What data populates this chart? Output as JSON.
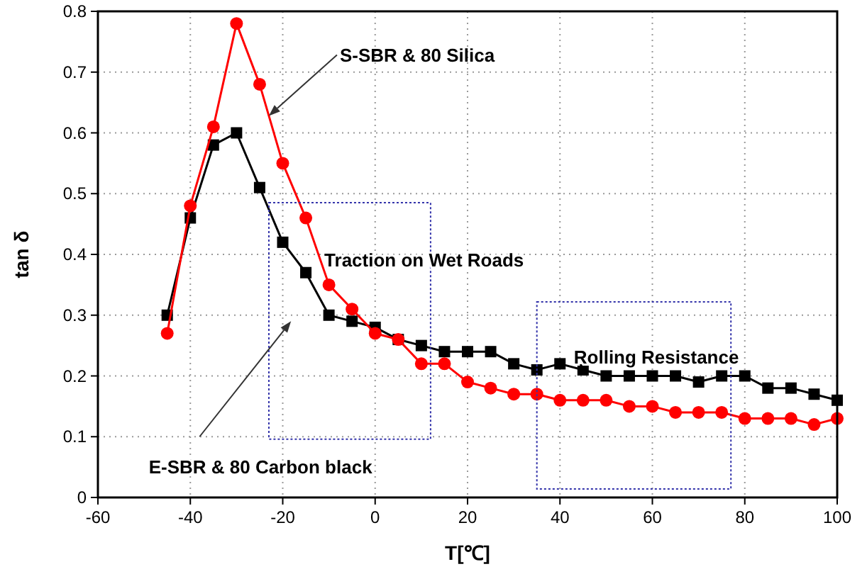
{
  "chart_data": {
    "type": "line",
    "xlabel": "T[℃]",
    "ylabel": "tan δ",
    "xlim": [
      -60,
      100
    ],
    "xticks": [
      -60,
      -40,
      -20,
      0,
      20,
      40,
      60,
      80,
      100
    ],
    "ylim": [
      0,
      0.8
    ],
    "yticks": [
      0.0,
      0.1,
      0.2,
      0.3,
      0.4,
      0.5,
      0.6,
      0.7,
      0.8
    ],
    "grid": true,
    "line_style": "solid",
    "x": [
      -45,
      -40,
      -35,
      -30,
      -25,
      -20,
      -15,
      -10,
      -5,
      0,
      5,
      10,
      15,
      20,
      25,
      30,
      35,
      40,
      45,
      50,
      55,
      60,
      65,
      70,
      75,
      80,
      85,
      90,
      95,
      100
    ],
    "series": [
      {
        "color": "#000000",
        "marker": "square",
        "values": [
          0.3,
          0.46,
          0.58,
          0.6,
          0.51,
          0.42,
          0.37,
          0.3,
          0.29,
          0.28,
          0.26,
          0.25,
          0.24,
          0.24,
          0.24,
          0.22,
          0.21,
          0.22,
          0.21,
          0.2,
          0.2,
          0.2,
          0.2,
          0.19,
          0.2,
          0.2,
          0.18,
          0.18,
          0.17,
          0.16
        ]
      },
      {
        "color": "#ff0000",
        "marker": "circle",
        "values": [
          0.27,
          0.48,
          0.61,
          0.78,
          0.68,
          0.55,
          0.46,
          0.35,
          0.31,
          0.27,
          0.26,
          0.22,
          0.22,
          0.19,
          0.18,
          0.17,
          0.17,
          0.16,
          0.16,
          0.16,
          0.15,
          0.15,
          0.14,
          0.14,
          0.14,
          0.13,
          0.13,
          0.13,
          0.12,
          0.13
        ]
      }
    ],
    "annotations": [
      {
        "text": "S-SBR & 80 Silica",
        "x": -23,
        "y": 0.628
      },
      "Traction on Wet Roads",
      "Rolling Resistance",
      "E-SBR & 80 Carbon black"
    ]
  }
}
